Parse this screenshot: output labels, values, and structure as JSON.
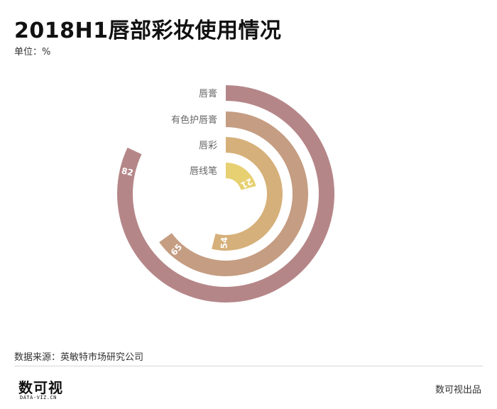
{
  "title": "2018H1唇部彩妆使用情况",
  "unit": "单位：%",
  "source": "数据来源：英敏特市场研究公司",
  "credit": "数可视出品",
  "logo": {
    "main": "数可视",
    "sub": "DATA-VIZ.CN"
  },
  "chart_data": {
    "type": "radial-bar",
    "title": "2018H1唇部彩妆使用情况",
    "unit": "%",
    "categories": [
      "唇膏",
      "有色护唇膏",
      "唇彩",
      "唇线笔"
    ],
    "values": [
      82,
      65,
      54,
      21
    ],
    "max": 100,
    "colors": [
      "#b58688",
      "#c59d82",
      "#d6b07a",
      "#e7d071"
    ]
  }
}
